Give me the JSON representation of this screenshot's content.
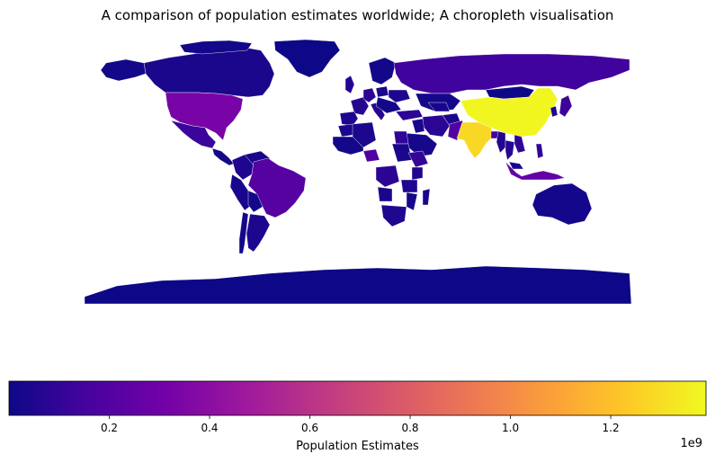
{
  "chart_data": {
    "type": "choropleth",
    "title": "A comparison of population estimates worldwide; A choropleth visualisation",
    "colorbar": {
      "label": "Population Estimates",
      "exponent_label": "1e9",
      "range": [
        0,
        1.39
      ],
      "ticks": [
        {
          "value": 0.2,
          "label": "0.2"
        },
        {
          "value": 0.4,
          "label": "0.4"
        },
        {
          "value": 0.6,
          "label": "0.6"
        },
        {
          "value": 0.8,
          "label": "0.8"
        },
        {
          "value": 1.0,
          "label": "1.0"
        },
        {
          "value": 1.2,
          "label": "1.2"
        }
      ],
      "orientation": "horizontal",
      "placement": "bottom"
    },
    "colormap": "plasma",
    "colormap_stops": [
      "#0d0887",
      "#46039f",
      "#7201a8",
      "#9c179e",
      "#bd3786",
      "#d8576b",
      "#ed7953",
      "#fb9f3a",
      "#fdca26",
      "#f0f921"
    ],
    "regions": [
      {
        "name": "China",
        "value": 1.38
      },
      {
        "name": "India",
        "value": 1.28
      },
      {
        "name": "United States",
        "value": 0.33
      },
      {
        "name": "Indonesia",
        "value": 0.26
      },
      {
        "name": "Brazil",
        "value": 0.21
      },
      {
        "name": "Pakistan",
        "value": 0.2
      },
      {
        "name": "Nigeria",
        "value": 0.19
      },
      {
        "name": "Bangladesh",
        "value": 0.16
      },
      {
        "name": "Russia",
        "value": 0.14
      },
      {
        "name": "Japan",
        "value": 0.126
      },
      {
        "name": "Mexico",
        "value": 0.124
      },
      {
        "name": "Ethiopia",
        "value": 0.105
      },
      {
        "name": "Philippines",
        "value": 0.104
      },
      {
        "name": "Egypt",
        "value": 0.097
      },
      {
        "name": "Vietnam",
        "value": 0.096
      },
      {
        "name": "DR Congo",
        "value": 0.083
      },
      {
        "name": "Iran",
        "value": 0.082
      },
      {
        "name": "Turkey",
        "value": 0.081
      },
      {
        "name": "Germany",
        "value": 0.083
      },
      {
        "name": "Thailand",
        "value": 0.068
      },
      {
        "name": "France",
        "value": 0.067
      },
      {
        "name": "United Kingdom",
        "value": 0.065
      },
      {
        "name": "Italy",
        "value": 0.062
      },
      {
        "name": "Tanzania",
        "value": 0.053
      },
      {
        "name": "South Africa",
        "value": 0.055
      },
      {
        "name": "Myanmar",
        "value": 0.055
      },
      {
        "name": "South Korea",
        "value": 0.051
      },
      {
        "name": "Colombia",
        "value": 0.047
      },
      {
        "name": "Kenya",
        "value": 0.047
      },
      {
        "name": "Spain",
        "value": 0.046
      },
      {
        "name": "Argentina",
        "value": 0.044
      },
      {
        "name": "Ukraine",
        "value": 0.044
      },
      {
        "name": "Sudan",
        "value": 0.037
      },
      {
        "name": "Algeria",
        "value": 0.04
      },
      {
        "name": "Poland",
        "value": 0.038
      },
      {
        "name": "Iraq",
        "value": 0.039
      },
      {
        "name": "Canada",
        "value": 0.035
      },
      {
        "name": "Morocco",
        "value": 0.034
      },
      {
        "name": "Afghanistan",
        "value": 0.034
      },
      {
        "name": "Saudi Arabia",
        "value": 0.028
      },
      {
        "name": "Peru",
        "value": 0.031
      },
      {
        "name": "Venezuela",
        "value": 0.031
      },
      {
        "name": "Malaysia",
        "value": 0.031
      },
      {
        "name": "Uzbekistan",
        "value": 0.029
      },
      {
        "name": "Angola",
        "value": 0.029
      },
      {
        "name": "Mozambique",
        "value": 0.026
      },
      {
        "name": "Australia",
        "value": 0.023
      },
      {
        "name": "Madagascar",
        "value": 0.025
      },
      {
        "name": "Kazakhstan",
        "value": 0.018
      },
      {
        "name": "Chile",
        "value": 0.017
      },
      {
        "name": "Mongolia",
        "value": 0.003
      },
      {
        "name": "Greenland",
        "value": 5e-05
      },
      {
        "name": "Antarctica",
        "value": 4e-06
      }
    ]
  }
}
